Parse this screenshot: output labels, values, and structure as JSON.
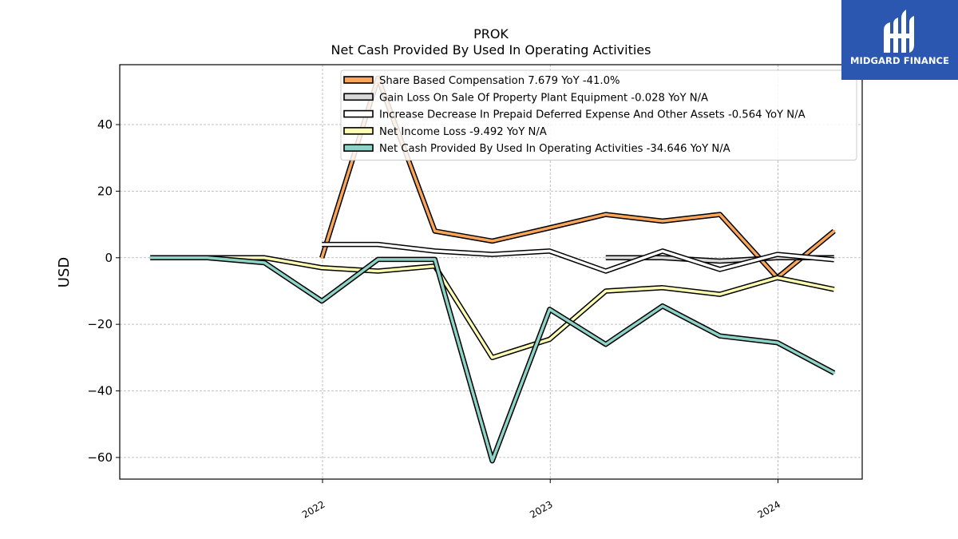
{
  "chart_data": {
    "type": "line",
    "title": "PROK",
    "subtitle": "Net Cash Provided By Used In Operating Activities",
    "xlabel": "",
    "ylabel": "USD",
    "xlim": [
      "2021-02-10",
      "2024-05-15"
    ],
    "ylim": [
      -66.5,
      58
    ],
    "y_ticks": [
      40,
      20,
      0,
      -20,
      -40,
      -60
    ],
    "y_tick_labels": [
      "40",
      "20",
      "0",
      "−20",
      "−40",
      "−60"
    ],
    "x_ticks": [
      "2022-01-01",
      "2023-01-01",
      "2024-01-01"
    ],
    "x_tick_labels": [
      "2022",
      "2023",
      "2024"
    ],
    "grid": true,
    "legend_position": "top-right",
    "series": [
      {
        "name": "Share Based Compensation",
        "legend_label": "Share Based Compensation  7.679 YoY -41.0%",
        "color": "#f9a65a",
        "x": [
          "2021-12-31",
          "2022-03-31",
          "2022-06-30",
          "2022-09-30",
          "2022-12-31",
          "2023-03-31",
          "2023-06-30",
          "2023-09-30",
          "2023-12-31",
          "2024-03-31"
        ],
        "y": [
          0.0,
          54.0,
          8.0,
          5.0,
          9.0,
          13.0,
          11.0,
          13.0,
          -6.0,
          8.0
        ]
      },
      {
        "name": "Gain Loss On Sale Of Property Plant Equipment",
        "legend_label": "Gain Loss On Sale Of Property Plant Equipment  -0.028 YoY N/A",
        "color": "#d9d9d9",
        "x": [
          "2023-03-31",
          "2023-06-30",
          "2023-09-30",
          "2023-12-31",
          "2024-03-31"
        ],
        "y": [
          0.0,
          0.0,
          -1.0,
          0.0,
          0.0
        ]
      },
      {
        "name": "Increase Decrease In Prepaid Deferred Expense And Other Assets",
        "legend_label": "Increase Decrease In Prepaid Deferred Expense And Other Assets  -0.564 YoY N/A",
        "color": "#ffffff",
        "x": [
          "2021-12-31",
          "2022-03-31",
          "2022-06-30",
          "2022-09-30",
          "2022-12-31",
          "2023-03-31",
          "2023-06-30",
          "2023-09-30",
          "2023-12-31",
          "2024-03-31"
        ],
        "y": [
          4.0,
          4.0,
          2.0,
          1.0,
          2.0,
          -4.0,
          2.0,
          -3.5,
          1.0,
          -0.6
        ]
      },
      {
        "name": "Net Income Loss",
        "legend_label": "Net Income Loss  -9.492 YoY N/A",
        "color": "#ffffb3",
        "x": [
          "2021-03-31",
          "2021-06-30",
          "2021-09-30",
          "2021-12-31",
          "2022-03-31",
          "2022-06-30",
          "2022-09-30",
          "2022-12-31",
          "2023-03-31",
          "2023-06-30",
          "2023-09-30",
          "2023-12-31",
          "2024-03-31"
        ],
        "y": [
          0.0,
          0.0,
          0.0,
          -3.0,
          -4.0,
          -2.5,
          -30.0,
          -24.5,
          -10.0,
          -9.0,
          -11.0,
          -6.0,
          -9.5
        ]
      },
      {
        "name": "Net Cash Provided By Used In Operating Activities",
        "legend_label": "Net Cash Provided By Used In Operating Activities  -34.646 YoY N/A",
        "color": "#8dd3c7",
        "x": [
          "2021-03-31",
          "2021-06-30",
          "2021-09-30",
          "2021-12-31",
          "2022-03-31",
          "2022-06-30",
          "2022-09-30",
          "2022-12-31",
          "2023-03-31",
          "2023-06-30",
          "2023-09-30",
          "2023-12-31",
          "2024-03-31"
        ],
        "y": [
          0.0,
          0.0,
          -1.5,
          -13.0,
          -0.5,
          -0.5,
          -61.0,
          -15.5,
          -26.0,
          -14.5,
          -23.5,
          -25.5,
          -34.6
        ]
      }
    ]
  },
  "logo": {
    "text": "MIDGARD FINANCE",
    "background": "#2b57b0",
    "icon": "midgard-logo-icon"
  }
}
